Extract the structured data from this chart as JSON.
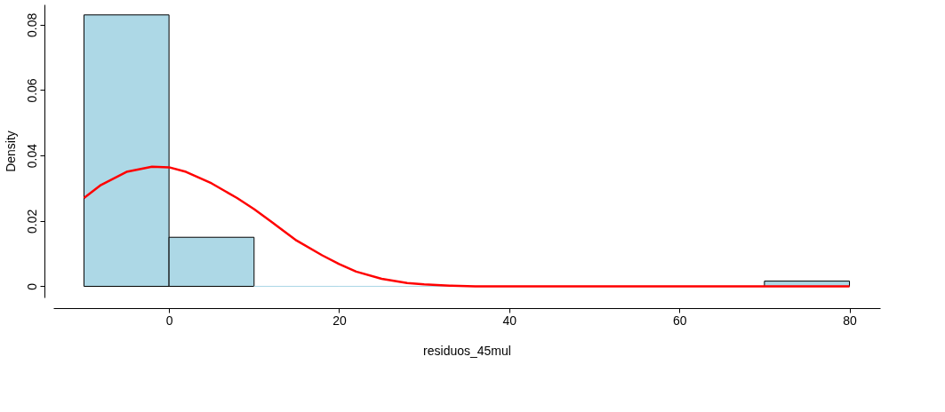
{
  "chart_data": {
    "type": "histogram",
    "xlabel": "residuos_45mul",
    "ylabel": "Density",
    "bins": [
      -10,
      0,
      10,
      20,
      30,
      40,
      50,
      60,
      70,
      80
    ],
    "values": [
      0.083,
      0.015,
      0,
      0,
      0,
      0,
      0,
      0,
      0.0016
    ],
    "color": "#add8e6",
    "series": [
      {
        "type": "line",
        "color": "#ff0000",
        "x": [
          -10,
          -8,
          -5,
          -2,
          0,
          2,
          5,
          8,
          10,
          12,
          15,
          18,
          20,
          22,
          25,
          28,
          30,
          33,
          36,
          40,
          50,
          60,
          70,
          80
        ],
        "values": [
          0.027,
          0.031,
          0.035,
          0.0366,
          0.0364,
          0.035,
          0.0315,
          0.027,
          0.0236,
          0.0198,
          0.014,
          0.0095,
          0.0068,
          0.0045,
          0.0023,
          0.001,
          0.0006,
          0.0002,
          0,
          0,
          0,
          0,
          0,
          0
        ]
      }
    ],
    "xlim": [
      -13.6,
      83.6
    ],
    "ylim": [
      -0.0034,
      0.0862
    ],
    "xticks": [
      0,
      20,
      40,
      60,
      80
    ],
    "yticks": [
      0,
      0.02,
      0.04,
      0.06,
      0.08
    ],
    "grid": false
  }
}
